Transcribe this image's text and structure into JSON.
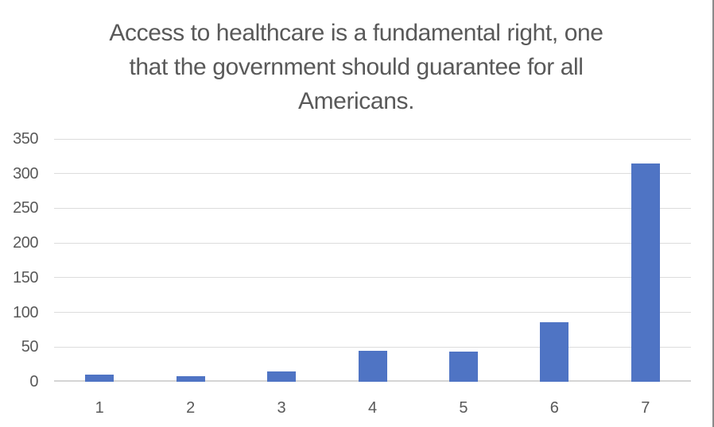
{
  "chart_data": {
    "type": "bar",
    "title": "Access to healthcare is a fundamental right, one that the government should guarantee for all Americans.",
    "title_lines": [
      "Access to healthcare is a fundamental right, one",
      "that the government should guarantee for all",
      "Americans."
    ],
    "categories": [
      "1",
      "2",
      "3",
      "4",
      "5",
      "6",
      "7"
    ],
    "values": [
      10,
      8,
      15,
      45,
      44,
      86,
      315
    ],
    "series_count": 1,
    "xlabel": "",
    "ylabel": "",
    "ylim": [
      0,
      350
    ],
    "y_ticks": [
      0,
      50,
      100,
      150,
      200,
      250,
      300,
      350
    ],
    "grid": "horizontal",
    "legend_position": "none",
    "bar_color": "#4f74c4"
  },
  "colors": {
    "bar_fill": "#4f74c4",
    "gridline": "#dcdcdc",
    "axis_line": "#d4d4d4",
    "text": "#595959",
    "frame_border": "#8a8a8a",
    "background": "#ffffff"
  }
}
